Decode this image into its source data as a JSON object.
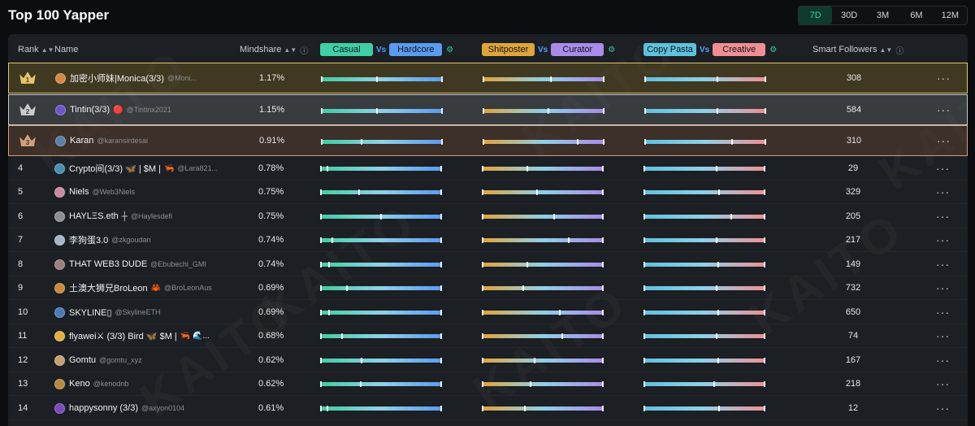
{
  "page": {
    "title": "Top 100 Yapper"
  },
  "periods": [
    {
      "label": "7D",
      "active": true
    },
    {
      "label": "30D",
      "active": false
    },
    {
      "label": "3M",
      "active": false
    },
    {
      "label": "6M",
      "active": false
    },
    {
      "label": "12M",
      "active": false
    }
  ],
  "columns": {
    "rank": "Rank",
    "name": "Name",
    "mindshare": "Mindshare",
    "vs": "Vs",
    "casual": "Casual",
    "hardcore": "Hardcore",
    "shitposter": "Shitposter",
    "curator": "Curator",
    "copypasta": "Copy Pasta",
    "creative": "Creative",
    "followers": "Smart Followers",
    "sort_icon": "sort-arrows-icon",
    "info_icon": "info-icon",
    "settings_icon": "settings-icon"
  },
  "colors": {
    "casual": "#3ecfa4",
    "hardcore": "#5a9bf0",
    "shitposter": "#e0a43a",
    "curator": "#a98be8",
    "copypasta": "#5ec2de",
    "creative": "#ef8f94",
    "gold": "#e6c46a",
    "silver": "#c8ccd2",
    "bronze": "#d1a07e"
  },
  "rows": [
    {
      "rank": "1",
      "medal": "gold",
      "name": "加密小师妹|Monica(3/3)",
      "extras": "",
      "handle": "@Moni...",
      "mindshare": "1.17%",
      "casual_hardcore": 0.46,
      "shit_curator": 0.56,
      "copy_creative": 0.6,
      "followers": "308",
      "avatar": "#d48a45"
    },
    {
      "rank": "2",
      "medal": "silver",
      "name": "Tintin(3/3)",
      "extras": "🔴",
      "handle": "@Tintinx2021",
      "mindshare": "1.15%",
      "casual_hardcore": 0.46,
      "shit_curator": 0.54,
      "copy_creative": 0.6,
      "followers": "584",
      "avatar": "#6f56c8"
    },
    {
      "rank": "3",
      "medal": "bronze",
      "name": "Karan",
      "extras": "",
      "handle": "@karansirdesai",
      "mindshare": "0.91%",
      "casual_hardcore": 0.33,
      "shit_curator": 0.78,
      "copy_creative": 0.72,
      "followers": "310",
      "avatar": "#5b7fa8"
    },
    {
      "rank": "4",
      "medal": "",
      "name": "Crypto间(3/3) 🦋 | $M |",
      "extras": "🦐",
      "handle": "@Lara821...",
      "mindshare": "0.78%",
      "casual_hardcore": 0.06,
      "shit_curator": 0.37,
      "copy_creative": 0.6,
      "followers": "29",
      "avatar": "#4a8fb0"
    },
    {
      "rank": "5",
      "medal": "",
      "name": "Niels",
      "extras": "",
      "handle": "@Web3Niels",
      "mindshare": "0.75%",
      "casual_hardcore": 0.32,
      "shit_curator": 0.45,
      "copy_creative": 0.62,
      "followers": "329",
      "avatar": "#c98aa0"
    },
    {
      "rank": "6",
      "medal": "",
      "name": "HAYLΞS.eth",
      "extras": "┼",
      "handle": "@Haylesdefi",
      "mindshare": "0.75%",
      "casual_hardcore": 0.5,
      "shit_curator": 0.59,
      "copy_creative": 0.72,
      "followers": "205",
      "avatar": "#8a8f96"
    },
    {
      "rank": "7",
      "medal": "",
      "name": "李狗蛋3.0",
      "extras": "",
      "handle": "@zkgoudan",
      "mindshare": "0.74%",
      "casual_hardcore": 0.1,
      "shit_curator": 0.71,
      "copy_creative": 0.6,
      "followers": "217",
      "avatar": "#a8b4c8"
    },
    {
      "rank": "8",
      "medal": "",
      "name": "THAT WEB3 DUDE",
      "extras": "",
      "handle": "@Ebubechi_GMI",
      "mindshare": "0.74%",
      "casual_hardcore": 0.07,
      "shit_curator": 0.37,
      "copy_creative": 0.61,
      "followers": "149",
      "avatar": "#9a7f7a"
    },
    {
      "rank": "9",
      "medal": "",
      "name": "土澳大狮兄BroLeon",
      "extras": "🦀",
      "handle": "@BroLeonAus",
      "mindshare": "0.69%",
      "casual_hardcore": 0.22,
      "shit_curator": 0.34,
      "copy_creative": 0.6,
      "followers": "732",
      "avatar": "#c98a3a"
    },
    {
      "rank": "10",
      "medal": "",
      "name": "SKYLINE▯",
      "extras": "",
      "handle": "@SkylineETH",
      "mindshare": "0.69%",
      "casual_hardcore": 0.07,
      "shit_curator": 0.64,
      "copy_creative": 0.61,
      "followers": "650",
      "avatar": "#4a7ab8"
    },
    {
      "rank": "11",
      "medal": "",
      "name": "flyawei⚔ (3/3) Bird 🦋 $M |",
      "extras": "🦐 🌊...",
      "handle": "",
      "mindshare": "0.68%",
      "casual_hardcore": 0.18,
      "shit_curator": 0.66,
      "copy_creative": 0.6,
      "followers": "74",
      "avatar": "#e0b040"
    },
    {
      "rank": "12",
      "medal": "",
      "name": "Gomtu",
      "extras": "",
      "handle": "@gomtu_xyz",
      "mindshare": "0.62%",
      "casual_hardcore": 0.34,
      "shit_curator": 0.43,
      "copy_creative": 0.61,
      "followers": "167",
      "avatar": "#c8a070"
    },
    {
      "rank": "13",
      "medal": "",
      "name": "Keno",
      "extras": "",
      "handle": "@kenodnb",
      "mindshare": "0.62%",
      "casual_hardcore": 0.33,
      "shit_curator": 0.4,
      "copy_creative": 0.58,
      "followers": "218",
      "avatar": "#b88a40"
    },
    {
      "rank": "14",
      "medal": "",
      "name": "happysonny (3/3)",
      "extras": "",
      "handle": "@axyon0104",
      "mindshare": "0.61%",
      "casual_hardcore": 0.06,
      "shit_curator": 0.35,
      "copy_creative": 0.62,
      "followers": "12",
      "avatar": "#7a4ab8"
    }
  ],
  "watermark": "KAITO"
}
